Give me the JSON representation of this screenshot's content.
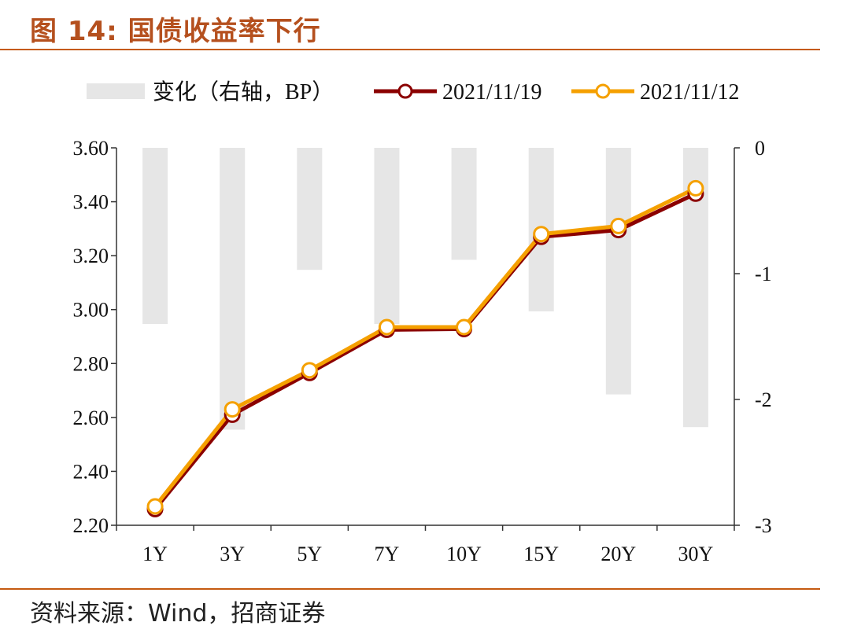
{
  "title": "图 14:  国债收益率下行",
  "source": "资料来源：Wind，招商证券",
  "colors": {
    "title": "#b5501e",
    "bar": "#e6e6e6",
    "series_1119": "#8b0000",
    "series_1112": "#f5a000",
    "marker_fill": "#ffffff"
  },
  "chart_data": {
    "type": "bar+line",
    "categories": [
      "1Y",
      "3Y",
      "5Y",
      "7Y",
      "10Y",
      "15Y",
      "20Y",
      "30Y"
    ],
    "legend": {
      "bar": "变化（右轴，BP）",
      "line1": "2021/11/19",
      "line2": "2021/11/12",
      "position": "top"
    },
    "series": [
      {
        "name": "变化（右轴，BP）",
        "kind": "bar",
        "axis": "right",
        "values": [
          -1.4,
          -2.24,
          -0.97,
          -1.4,
          -0.89,
          -1.3,
          -1.96,
          -2.22
        ]
      },
      {
        "name": "2021/11/19",
        "kind": "line",
        "axis": "left",
        "values": [
          2.26,
          2.61,
          2.765,
          2.925,
          2.928,
          3.27,
          3.295,
          3.43
        ]
      },
      {
        "name": "2021/11/12",
        "kind": "line",
        "axis": "left",
        "values": [
          2.27,
          2.63,
          2.775,
          2.935,
          2.935,
          3.28,
          3.31,
          3.45
        ]
      }
    ],
    "y_left": {
      "min": 2.2,
      "max": 3.6,
      "ticks": [
        "2.20",
        "2.40",
        "2.60",
        "2.80",
        "3.00",
        "3.20",
        "3.40",
        "3.60"
      ]
    },
    "y_right": {
      "min": -3,
      "max": 0,
      "ticks": [
        "-3",
        "-2",
        "-1",
        "0"
      ]
    },
    "grid": false
  }
}
